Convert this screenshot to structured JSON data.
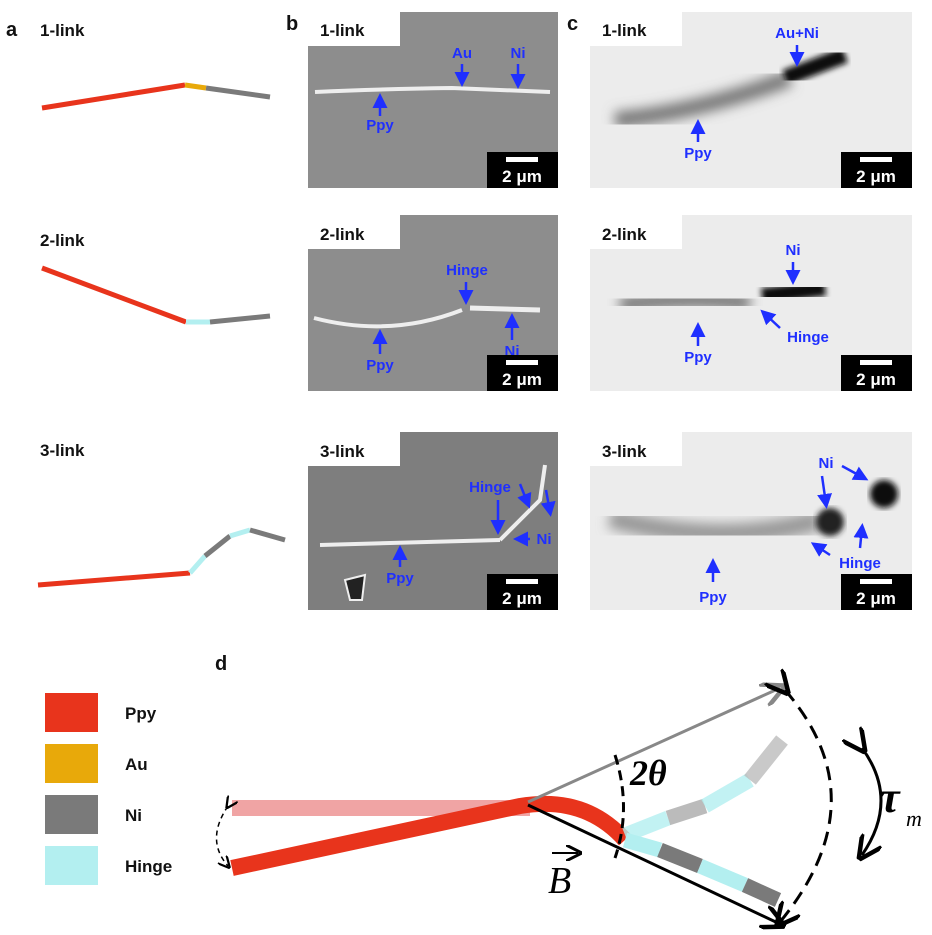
{
  "panels": {
    "a": {
      "label": "a",
      "rows": [
        "1-link",
        "2-link",
        "3-link"
      ]
    },
    "b": {
      "label": "b",
      "rows": [
        {
          "title": "1-link",
          "annotations": [
            "Au",
            "Ni",
            "Ppy"
          ],
          "scale_bar": "2 μm"
        },
        {
          "title": "2-link",
          "annotations": [
            "Hinge",
            "Ppy",
            "Ni"
          ],
          "scale_bar": "2 μm"
        },
        {
          "title": "3-link",
          "annotations": [
            "Hinge",
            "Ni",
            "Ppy"
          ],
          "scale_bar": "2 μm"
        }
      ]
    },
    "c": {
      "label": "c",
      "rows": [
        {
          "title": "1-link",
          "annotations": [
            "Au+Ni",
            "Ppy"
          ],
          "scale_bar": "2 μm"
        },
        {
          "title": "2-link",
          "annotations": [
            "Ni",
            "Hinge",
            "Ppy"
          ],
          "scale_bar": "2 μm"
        },
        {
          "title": "3-link",
          "annotations": [
            "Ni",
            "Hinge",
            "Ppy"
          ],
          "scale_bar": "2 μm"
        }
      ]
    },
    "d": {
      "label": "d",
      "legend": [
        {
          "name": "Ppy",
          "color": "#e8341c"
        },
        {
          "name": "Au",
          "color": "#e8a90a"
        },
        {
          "name": "Ni",
          "color": "#7a7a7a"
        },
        {
          "name": "Hinge",
          "color": "#b3eff0"
        }
      ],
      "angle_label": "2θ",
      "field_label": "B",
      "torque_label": "τ",
      "torque_subscript": "m"
    }
  }
}
